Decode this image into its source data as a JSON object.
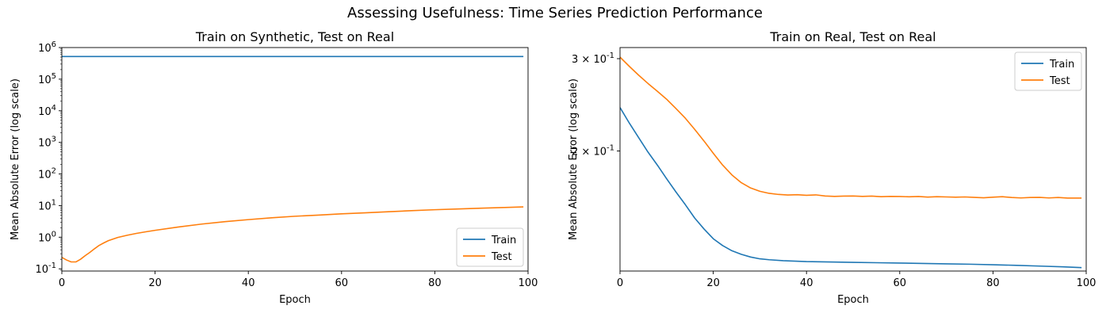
{
  "figure": {
    "title": "Assessing Usefulness: Time Series Prediction Performance"
  },
  "colors": {
    "train": "#1f77b4",
    "test": "#ff7f0e"
  },
  "chart_data": [
    {
      "type": "line",
      "title": "Train on Synthetic, Test on Real",
      "xlabel": "Epoch",
      "ylabel": "Mean Absolute Error (log scale)",
      "yscale": "log",
      "xlim": [
        0,
        100
      ],
      "ylim": [
        0.085,
        1000000
      ],
      "xticks": [
        0,
        20,
        40,
        60,
        80,
        100
      ],
      "xtick_labels": [
        "0",
        "20",
        "40",
        "60",
        "80",
        "100"
      ],
      "yticks": [
        0.1,
        1,
        10,
        100,
        1000,
        10000,
        100000,
        1000000
      ],
      "ytick_labels": [
        "10^-1",
        "10^0",
        "10^1",
        "10^2",
        "10^3",
        "10^4",
        "10^5",
        "10^6"
      ],
      "grid": false,
      "legend_position": "lower-right",
      "series": [
        {
          "name": "Train",
          "x": [
            0,
            99
          ],
          "values": [
            520000,
            520000
          ]
        },
        {
          "name": "Test",
          "x": [
            0,
            1,
            2,
            3,
            4,
            5,
            6,
            7,
            8,
            9,
            10,
            12,
            14,
            16,
            18,
            20,
            25,
            30,
            35,
            40,
            45,
            50,
            55,
            60,
            65,
            70,
            75,
            80,
            85,
            90,
            95,
            99
          ],
          "values": [
            0.23,
            0.19,
            0.165,
            0.165,
            0.2,
            0.26,
            0.33,
            0.43,
            0.55,
            0.66,
            0.78,
            0.98,
            1.15,
            1.32,
            1.48,
            1.65,
            2.1,
            2.6,
            3.1,
            3.6,
            4.1,
            4.6,
            5.0,
            5.5,
            5.9,
            6.4,
            6.9,
            7.4,
            7.8,
            8.3,
            8.7,
            9.1
          ]
        }
      ]
    },
    {
      "type": "line",
      "title": "Train on Real, Test on Real",
      "xlabel": "Epoch",
      "ylabel": "Mean Absolute Error (log scale)",
      "yscale": "log",
      "xlim": [
        0,
        100
      ],
      "ylim": [
        0.118,
        0.315
      ],
      "xticks": [
        0,
        20,
        40,
        60,
        80,
        100
      ],
      "xtick_labels": [
        "0",
        "20",
        "40",
        "60",
        "80",
        "100"
      ],
      "yticks": [
        0.2,
        0.3
      ],
      "ytick_labels": [
        "2 × 10^-1",
        "3 × 10^-1"
      ],
      "grid": false,
      "legend_position": "upper-right",
      "series": [
        {
          "name": "Train",
          "x": [
            0,
            2,
            4,
            6,
            8,
            10,
            12,
            14,
            16,
            18,
            20,
            22,
            24,
            26,
            28,
            30,
            32,
            35,
            40,
            45,
            50,
            55,
            60,
            65,
            70,
            75,
            80,
            85,
            90,
            95,
            99
          ],
          "values": [
            0.242,
            0.226,
            0.212,
            0.199,
            0.188,
            0.177,
            0.167,
            0.158,
            0.149,
            0.142,
            0.136,
            0.132,
            0.129,
            0.127,
            0.1255,
            0.1245,
            0.124,
            0.1235,
            0.123,
            0.1228,
            0.1226,
            0.1224,
            0.1222,
            0.122,
            0.1218,
            0.1216,
            0.1213,
            0.121,
            0.1206,
            0.1202,
            0.1198
          ]
        },
        {
          "name": "Test",
          "x": [
            0,
            2,
            4,
            6,
            8,
            10,
            12,
            14,
            16,
            18,
            20,
            22,
            24,
            26,
            28,
            30,
            32,
            34,
            36,
            38,
            40,
            42,
            44,
            46,
            48,
            50,
            52,
            54,
            56,
            58,
            60,
            62,
            64,
            66,
            68,
            70,
            72,
            74,
            76,
            78,
            80,
            82,
            84,
            86,
            88,
            90,
            92,
            94,
            96,
            99
          ],
          "values": [
            0.302,
            0.29,
            0.279,
            0.269,
            0.26,
            0.251,
            0.241,
            0.231,
            0.22,
            0.209,
            0.198,
            0.188,
            0.18,
            0.174,
            0.17,
            0.1675,
            0.166,
            0.1652,
            0.1648,
            0.165,
            0.1646,
            0.1649,
            0.1641,
            0.1638,
            0.164,
            0.1641,
            0.1638,
            0.164,
            0.1636,
            0.1638,
            0.1637,
            0.1635,
            0.1637,
            0.1633,
            0.1636,
            0.1634,
            0.1632,
            0.1634,
            0.1631,
            0.1628,
            0.1632,
            0.1636,
            0.163,
            0.1627,
            0.163,
            0.1631,
            0.1627,
            0.163,
            0.1626,
            0.1626
          ]
        }
      ]
    }
  ]
}
